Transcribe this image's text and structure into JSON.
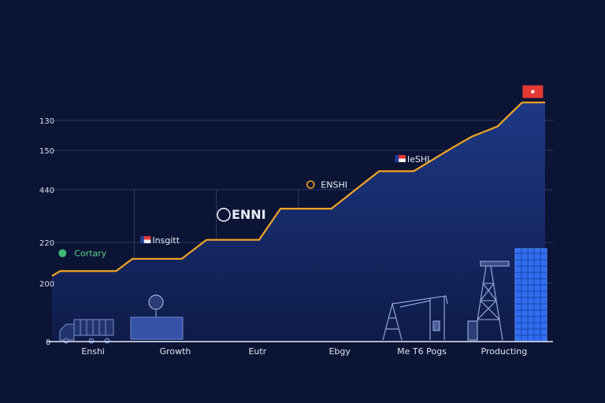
{
  "chart_data": {
    "type": "area",
    "categories": [
      "Enshi",
      "Growth",
      "Eutr",
      "Ebgy",
      "Me T6 Pogs",
      "Producting"
    ],
    "y_tick_labels": [
      "0",
      "200",
      "220",
      "440",
      "150",
      "130"
    ],
    "y_tick_values": [
      0,
      1,
      2,
      3,
      4,
      5
    ],
    "ylim": [
      0,
      5.4
    ],
    "x_range": [
      0,
      6
    ],
    "grid": true,
    "series": [
      {
        "x": [
          0,
          0.1,
          0.78,
          0.98,
          1.58,
          1.88,
          2.52,
          2.78,
          3.4,
          3.98,
          4.4,
          4.88,
          5.1,
          5.42,
          5.72,
          6.0
        ],
        "y": [
          1.18,
          1.3,
          1.3,
          1.6,
          1.6,
          2.05,
          2.05,
          2.64,
          2.64,
          3.47,
          3.47,
          4.1,
          4.45,
          4.8,
          5.6,
          5.6
        ]
      }
    ],
    "annotations": [
      {
        "text": "Cortary",
        "x": 0.3,
        "y": 1.66,
        "icon": "leaf-icon"
      },
      {
        "text": "Insgitt",
        "x": 1.25,
        "y": 1.98,
        "icon": "flag-icon"
      },
      {
        "text": "ENNI",
        "x": 2.3,
        "y": 2.45,
        "icon": "emblem-icon"
      },
      {
        "text": "ENSHI",
        "x": 3.3,
        "y": 3.05,
        "icon": "badge-icon"
      },
      {
        "text": "IeSHI",
        "x": 4.35,
        "y": 3.7,
        "icon": "flag-icon"
      },
      {
        "text": "",
        "x": 5.85,
        "y": 5.75,
        "icon": "flag-icon"
      }
    ]
  },
  "colors": {
    "background": "#0b1434",
    "line": "#f5a524",
    "area_top": "#1f3a8a",
    "area_bottom": "#0f1c4a",
    "grid": "#2b3a66",
    "axis": "#e6eaf4",
    "flag_red": "#e53935",
    "building_blue": "#2f6df0",
    "icon_outline": "#7b8fc7"
  },
  "icons": [
    "truck-icon",
    "container-icon",
    "pumpjack-icon",
    "oil-derrick-icon",
    "building-icon"
  ]
}
